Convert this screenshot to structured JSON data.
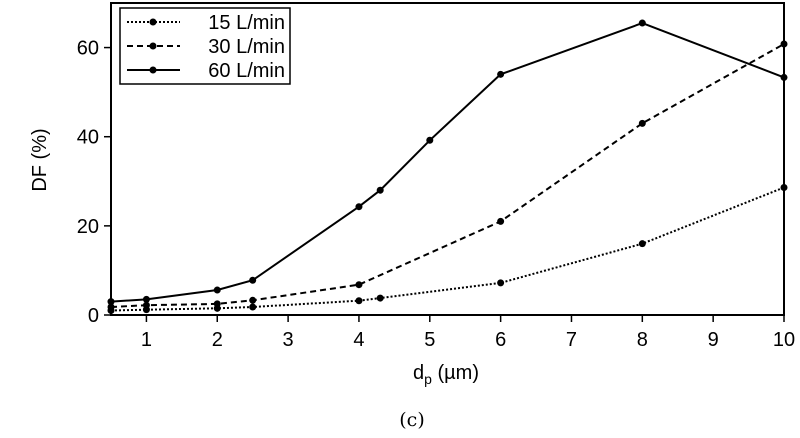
{
  "chart_data": {
    "type": "line",
    "xlabel": "d",
    "xlabel_sub": "p",
    "xlabel_unit": " (µm)",
    "ylabel": "DF (%)",
    "xlim": [
      0.5,
      10
    ],
    "ylim": [
      0,
      70
    ],
    "xticks": [
      1,
      2,
      3,
      4,
      5,
      6,
      7,
      8,
      9,
      10
    ],
    "yticks": [
      0,
      20,
      40,
      60
    ],
    "grid": false,
    "legend_position": "top-left",
    "caption": "(c)",
    "series": [
      {
        "name": "15 L/min",
        "style": "dotted",
        "color": "#000000",
        "x": [
          0.5,
          1,
          2,
          2.5,
          4,
          4.3,
          6,
          8,
          10
        ],
        "y": [
          1.0,
          1.2,
          1.5,
          1.8,
          3.2,
          3.8,
          7.2,
          16.0,
          28.6
        ]
      },
      {
        "name": "30 L/min",
        "style": "dashed",
        "color": "#000000",
        "x": [
          0.5,
          1,
          2,
          2.5,
          4,
          6,
          8,
          10
        ],
        "y": [
          1.8,
          2.2,
          2.5,
          3.3,
          6.8,
          21.0,
          43.0,
          60.8
        ]
      },
      {
        "name": "60 L/min",
        "style": "solid",
        "color": "#000000",
        "x": [
          0.5,
          1,
          2,
          2.5,
          4,
          4.3,
          5,
          6,
          8,
          10
        ],
        "y": [
          3.0,
          3.5,
          5.6,
          7.8,
          24.3,
          28.0,
          39.2,
          54.0,
          65.5,
          53.3
        ]
      }
    ]
  }
}
